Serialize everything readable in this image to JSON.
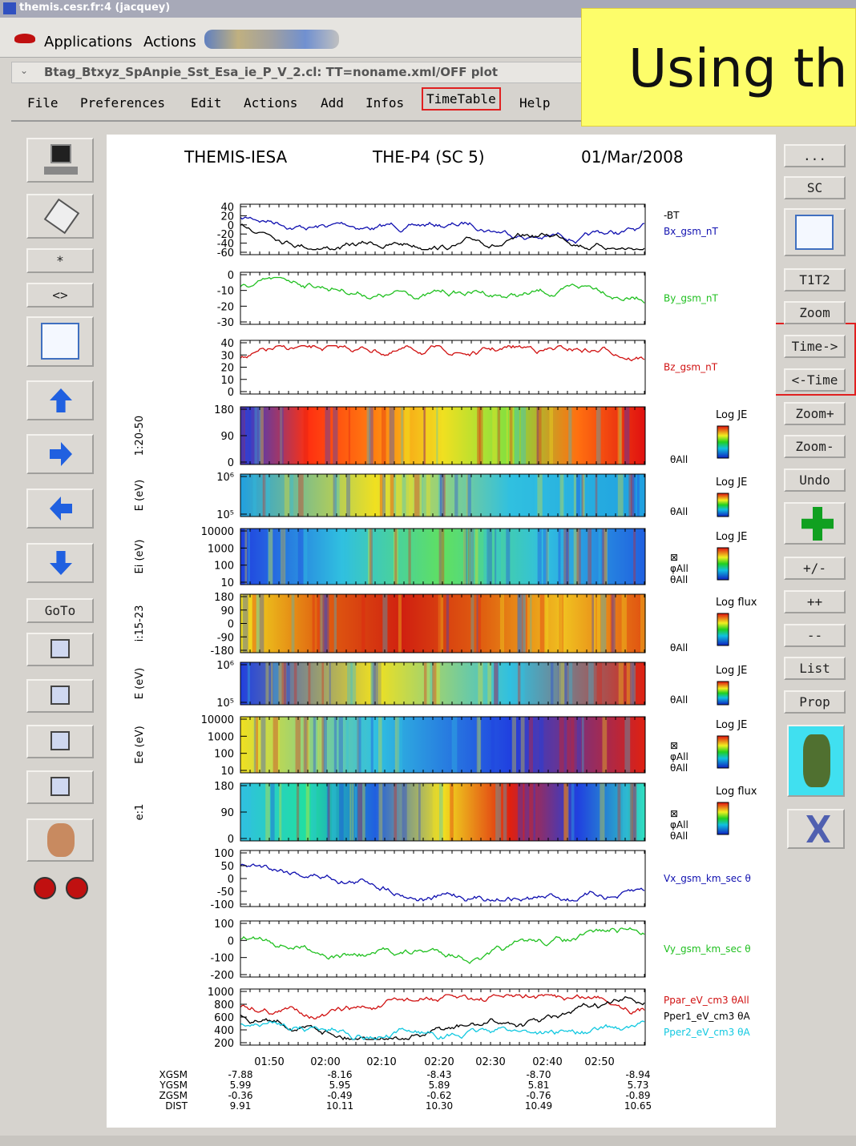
{
  "window": {
    "title": "themis.cesr.fr:4 (jacquey)"
  },
  "taskbar": {
    "menus": [
      "Applications",
      "Actions"
    ]
  },
  "tab": {
    "title": "Btag_Btxyz_SpAnpie_Sst_Esa_ie_P_V_2.cl:  TT=noname.xml/OFF  plot"
  },
  "menu": [
    "File",
    "Preferences",
    "Edit",
    "Actions",
    "Add",
    "Infos",
    "TimeTable",
    "Help"
  ],
  "banner": "Using th",
  "left_buttons": [
    "*",
    "<>",
    "GoTo"
  ],
  "right_buttons": [
    "...",
    "SC",
    "T1T2",
    "Zoom",
    "Time->",
    "<-Time",
    "Zoom+",
    "Zoom-",
    "Undo",
    "+/-",
    "++",
    "--",
    "List",
    "Prop"
  ],
  "plot": {
    "header": [
      "THEMIS-IESA",
      "THE-P4 (SC 5)",
      "01/Mar/2008"
    ],
    "panels": [
      {
        "ticks": [
          "40",
          "20",
          "0",
          "-20",
          "-40",
          "-60"
        ],
        "labels": [
          {
            "text": "-BT",
            "color": "#000000"
          },
          {
            "text": "Bx_gsm_nT",
            "color": "#1010b0"
          }
        ]
      },
      {
        "ticks": [
          "0",
          "-10",
          "-20",
          "-30"
        ],
        "labels": [
          {
            "text": "By_gsm_nT",
            "color": "#20c020"
          }
        ]
      },
      {
        "ticks": [
          "40",
          "30",
          "20",
          "10",
          "0"
        ],
        "labels": [
          {
            "text": "Bz_gsm_nT",
            "color": "#d01010"
          }
        ]
      },
      {
        "ylabel": "1:20-50",
        "ticks": [
          "180",
          "90",
          "0"
        ],
        "labels": [
          {
            "text": "θAll",
            "color": "#000000"
          }
        ],
        "legend": "Log JE"
      },
      {
        "ylabel": "E (eV)",
        "ticks": [
          "10⁶",
          "10⁵"
        ],
        "labels": [
          {
            "text": "θAll",
            "color": "#000000"
          }
        ],
        "legend": "Log JE"
      },
      {
        "ylabel": "Ei (eV)",
        "ticks": [
          "10000",
          "1000",
          "100",
          "10"
        ],
        "labels": [
          {
            "text": "⊠",
            "color": "#000000"
          },
          {
            "text": "φAll",
            "color": "#000000"
          },
          {
            "text": "θAll",
            "color": "#000000"
          }
        ],
        "legend": "Log JE"
      },
      {
        "ylabel": "i:15-23",
        "ticks": [
          "180",
          "90",
          "0",
          "-90",
          "-180"
        ],
        "labels": [
          {
            "text": "θAll",
            "color": "#000000"
          }
        ],
        "legend": "Log flux"
      },
      {
        "ylabel": "E (eV)",
        "ticks": [
          "10⁶",
          "10⁵"
        ],
        "labels": [
          {
            "text": "θAll",
            "color": "#000000"
          }
        ],
        "legend": "Log JE"
      },
      {
        "ylabel": "Ee (eV)",
        "ticks": [
          "10000",
          "1000",
          "100",
          "10"
        ],
        "labels": [
          {
            "text": "⊠",
            "color": "#000000"
          },
          {
            "text": "φAll",
            "color": "#000000"
          },
          {
            "text": "θAll",
            "color": "#000000"
          }
        ],
        "legend": "Log JE"
      },
      {
        "ylabel": "e:1",
        "ticks": [
          "180",
          "90",
          "0"
        ],
        "labels": [
          {
            "text": "⊠",
            "color": "#000000"
          },
          {
            "text": "φAll",
            "color": "#000000"
          },
          {
            "text": "θAll",
            "color": "#000000"
          }
        ],
        "legend": "Log flux"
      },
      {
        "ticks": [
          "100",
          "50",
          "0",
          "-50",
          "-100"
        ],
        "labels": [
          {
            "text": "Vx_gsm_km_sec  θ",
            "color": "#1010b0"
          }
        ]
      },
      {
        "ticks": [
          "100",
          "0",
          "-100",
          "-200"
        ],
        "labels": [
          {
            "text": "Vy_gsm_km_sec  θ",
            "color": "#20c020"
          }
        ]
      },
      {
        "ticks": [
          "1000",
          "800",
          "600",
          "400",
          "200"
        ],
        "labels": [
          {
            "text": "Ppar_eV_cm3  θAll",
            "color": "#d01010"
          },
          {
            "text": "Pper1_eV_cm3  θA",
            "color": "#000000"
          },
          {
            "text": "Pper2_eV_cm3  θA",
            "color": "#10c8e0"
          }
        ]
      }
    ],
    "time_ticks": [
      "01:50",
      "02:00",
      "02:10",
      "02:20",
      "02:30",
      "02:40",
      "02:50"
    ],
    "orbit_labels": [
      "XGSM",
      "YGSM",
      "ZGSM",
      "DIST"
    ],
    "orbit_columns": [
      [
        "-7.88",
        "5.99",
        "-0.36",
        "9.91"
      ],
      [
        "-8.16",
        "5.95",
        "-0.49",
        "10.11"
      ],
      [
        "-8.43",
        "5.89",
        "-0.62",
        "10.30"
      ],
      [
        "-8.70",
        "5.81",
        "-0.76",
        "10.49"
      ],
      [
        "-8.94",
        "5.73",
        "-0.89",
        "10.65"
      ]
    ]
  }
}
